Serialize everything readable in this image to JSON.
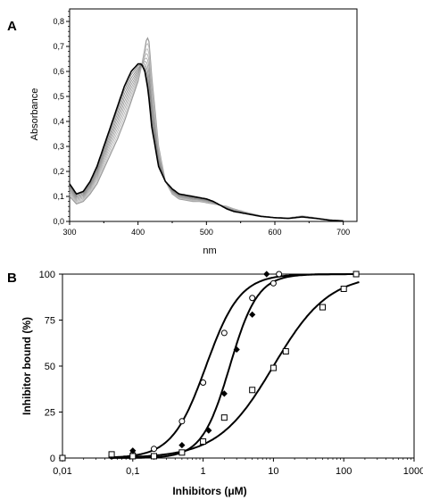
{
  "chart_data": [
    {
      "panel_label": "A",
      "type": "line",
      "xlabel": "nm",
      "ylabel": "Absorbance",
      "xlim": [
        300,
        720
      ],
      "ylim": [
        0,
        0.85
      ],
      "x_ticks": [
        300,
        400,
        500,
        600,
        700
      ],
      "x_tick_labels": [
        "300",
        "400",
        "500",
        "600",
        "700"
      ],
      "y_ticks": [
        0,
        0.1,
        0.2,
        0.3,
        0.4,
        0.5,
        0.6,
        0.7,
        0.8
      ],
      "y_tick_labels": [
        "0,0",
        "0,1",
        "0,2",
        "0,3",
        "0,4",
        "0,5",
        "0,6",
        "0,7",
        "0,8"
      ],
      "grid": false,
      "colors": {
        "initial": "#000000",
        "final": "#9a9a9a"
      },
      "series": [
        {
          "values": [
            [
              300,
              0.15
            ],
            [
              310,
              0.11
            ],
            [
              320,
              0.12
            ],
            [
              330,
              0.16
            ],
            [
              340,
              0.22
            ],
            [
              350,
              0.3
            ],
            [
              360,
              0.38
            ],
            [
              370,
              0.46
            ],
            [
              380,
              0.54
            ],
            [
              390,
              0.6
            ],
            [
              400,
              0.63
            ],
            [
              405,
              0.63
            ],
            [
              410,
              0.6
            ],
            [
              415,
              0.52
            ],
            [
              420,
              0.38
            ],
            [
              430,
              0.22
            ],
            [
              440,
              0.16
            ],
            [
              450,
              0.13
            ],
            [
              460,
              0.11
            ],
            [
              470,
              0.105
            ],
            [
              480,
              0.1
            ],
            [
              490,
              0.095
            ],
            [
              500,
              0.09
            ],
            [
              510,
              0.08
            ],
            [
              520,
              0.065
            ],
            [
              530,
              0.05
            ],
            [
              540,
              0.04
            ],
            [
              560,
              0.03
            ],
            [
              580,
              0.02
            ],
            [
              600,
              0.015
            ],
            [
              620,
              0.012
            ],
            [
              640,
              0.018
            ],
            [
              660,
              0.012
            ],
            [
              680,
              0.005
            ],
            [
              700,
              0.002
            ]
          ]
        },
        {
          "values": [
            [
              300,
              0.1
            ],
            [
              310,
              0.07
            ],
            [
              320,
              0.08
            ],
            [
              330,
              0.11
            ],
            [
              340,
              0.15
            ],
            [
              350,
              0.21
            ],
            [
              360,
              0.27
            ],
            [
              370,
              0.33
            ],
            [
              380,
              0.4
            ],
            [
              390,
              0.48
            ],
            [
              400,
              0.56
            ],
            [
              405,
              0.62
            ],
            [
              410,
              0.69
            ],
            [
              413,
              0.74
            ],
            [
              416,
              0.72
            ],
            [
              420,
              0.58
            ],
            [
              430,
              0.3
            ],
            [
              440,
              0.16
            ],
            [
              450,
              0.11
            ],
            [
              460,
              0.09
            ],
            [
              470,
              0.085
            ],
            [
              480,
              0.08
            ],
            [
              490,
              0.08
            ],
            [
              500,
              0.075
            ],
            [
              510,
              0.07
            ],
            [
              520,
              0.065
            ],
            [
              530,
              0.06
            ],
            [
              540,
              0.05
            ],
            [
              560,
              0.035
            ],
            [
              580,
              0.022
            ],
            [
              600,
              0.015
            ],
            [
              620,
              0.014
            ],
            [
              640,
              0.022
            ],
            [
              660,
              0.014
            ],
            [
              680,
              0.006
            ],
            [
              700,
              0.002
            ]
          ]
        }
      ]
    },
    {
      "panel_label": "B",
      "type": "scatter",
      "xlabel": "Inhibitors (μM)",
      "ylabel": "Inhibitor bound (%)",
      "x_scale": "log",
      "xlim": [
        0.01,
        1000
      ],
      "ylim": [
        0,
        100
      ],
      "x_ticks": [
        0.01,
        0.1,
        1,
        10,
        100,
        1000
      ],
      "x_tick_labels": [
        "0,01",
        "0,1",
        "1",
        "10",
        "100",
        "1000"
      ],
      "y_ticks": [
        0,
        25,
        50,
        75,
        100
      ],
      "y_tick_labels": [
        "0",
        "25",
        "50",
        "75",
        "100"
      ],
      "grid": false,
      "colors": {
        "marker": "#000000",
        "curve": "#000000"
      },
      "series": [
        {
          "marker": "circle-open",
          "x": [
            0.01,
            0.05,
            0.1,
            0.2,
            0.5,
            1,
            2,
            5,
            10,
            12
          ],
          "y": [
            0,
            1,
            2,
            5,
            20,
            41,
            68,
            87,
            95,
            100
          ],
          "fit": {
            "ec50": 1.1,
            "hill": 1.8
          }
        },
        {
          "marker": "diamond-filled",
          "x": [
            0.01,
            0.05,
            0.1,
            0.5,
            1.2,
            2,
            3,
            5,
            8
          ],
          "y": [
            0,
            1,
            4,
            7,
            15,
            35,
            59,
            78,
            100
          ],
          "fit": {
            "ec50": 2.4,
            "hill": 2.2
          }
        },
        {
          "marker": "square-open",
          "x": [
            0.01,
            0.05,
            0.1,
            0.2,
            0.5,
            1,
            2,
            5,
            10,
            15,
            50,
            100,
            150
          ],
          "y": [
            0,
            2,
            1,
            1,
            3,
            9,
            22,
            37,
            49,
            58,
            82,
            92,
            100
          ],
          "fit": {
            "ec50": 10,
            "hill": 1.1
          }
        }
      ]
    }
  ]
}
